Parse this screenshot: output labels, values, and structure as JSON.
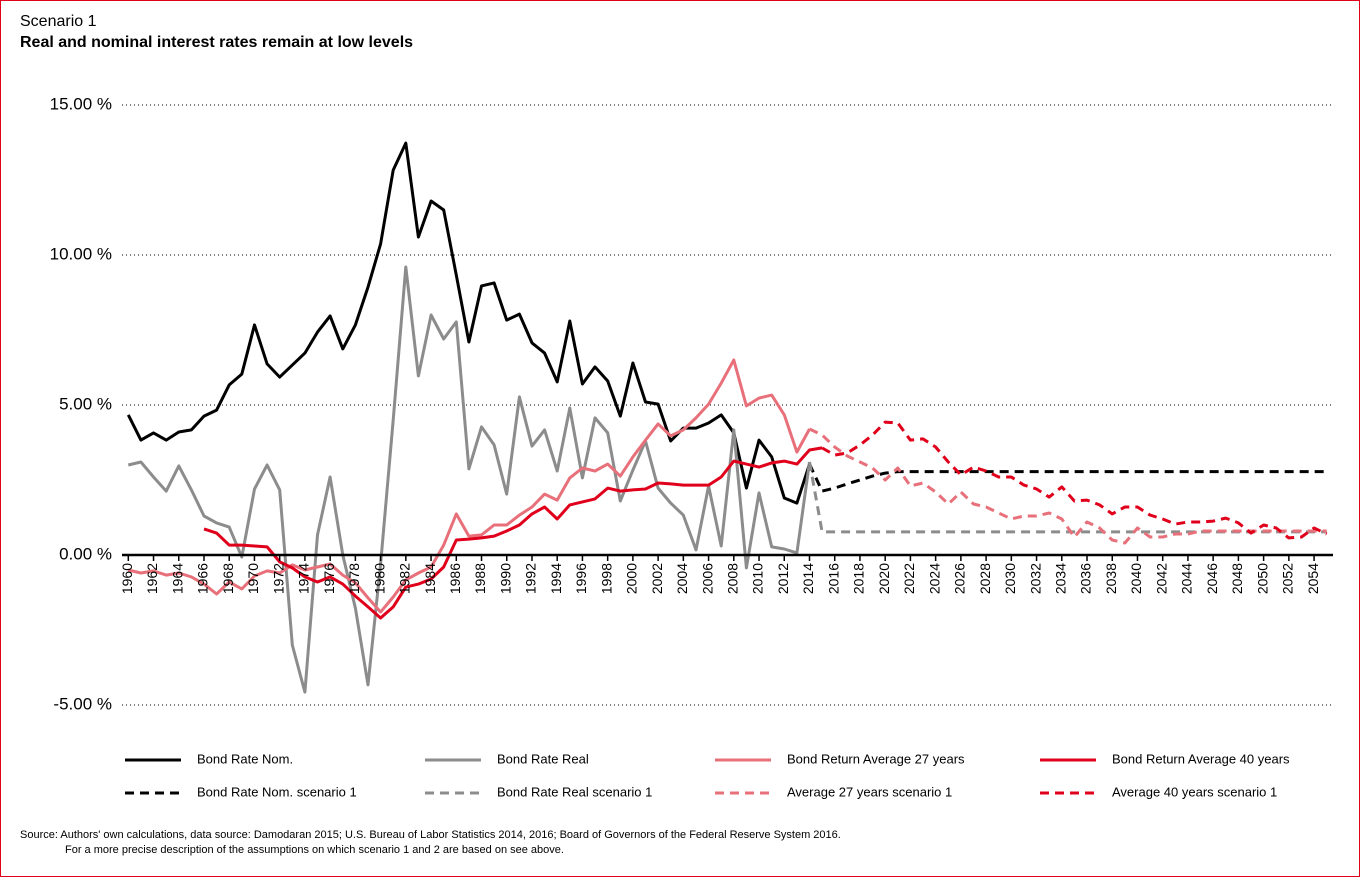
{
  "chart_data": {
    "type": "line",
    "kicker": "Scenario 1",
    "title": "Real and nominal interest rates remain at low levels",
    "source": [
      "Source: Authors' own calculations, data source: Damodaran 2015; U.S. Bureau of Labor Statistics 2014, 2016; Board of Governors of the Federal Reserve System 2016.",
      "For a more precise description of the assumptions on which scenario 1 and 2 are based on see above."
    ],
    "x": [
      1960,
      1961,
      1962,
      1963,
      1964,
      1965,
      1966,
      1967,
      1968,
      1969,
      1970,
      1971,
      1972,
      1973,
      1974,
      1975,
      1976,
      1977,
      1978,
      1979,
      1980,
      1981,
      1982,
      1983,
      1984,
      1985,
      1986,
      1987,
      1988,
      1989,
      1990,
      1991,
      1992,
      1993,
      1994,
      1995,
      1996,
      1997,
      1998,
      1999,
      2000,
      2001,
      2002,
      2003,
      2004,
      2005,
      2006,
      2007,
      2008,
      2009,
      2010,
      2011,
      2012,
      2013,
      2014,
      2015,
      2016,
      2017,
      2018,
      2019,
      2020,
      2021,
      2022,
      2023,
      2024,
      2025,
      2026,
      2027,
      2028,
      2029,
      2030,
      2031,
      2032,
      2033,
      2034,
      2035,
      2036,
      2037,
      2038,
      2039,
      2040,
      2041,
      2042,
      2043,
      2044,
      2045,
      2046,
      2047,
      2048,
      2049,
      2050,
      2051,
      2052,
      2053,
      2054,
      2055
    ],
    "xlim": [
      1959.5,
      2055.5
    ],
    "xticks": [
      1960,
      1962,
      1964,
      1966,
      1968,
      1970,
      1972,
      1974,
      1976,
      1978,
      1980,
      1982,
      1984,
      1986,
      1988,
      1990,
      1992,
      1994,
      1996,
      1998,
      2000,
      2002,
      2004,
      2006,
      2008,
      2010,
      2012,
      2014,
      2016,
      2018,
      2020,
      2022,
      2024,
      2026,
      2028,
      2030,
      2032,
      2034,
      2036,
      2038,
      2040,
      2042,
      2044,
      2046,
      2048,
      2050,
      2052,
      2054
    ],
    "ylim": [
      -5,
      15
    ],
    "yticks": [
      {
        "value": -5,
        "label": "-5.00 %"
      },
      {
        "value": 0,
        "label": "0.00 %"
      },
      {
        "value": 5,
        "label": "5.00 %"
      },
      {
        "value": 10,
        "label": "10.00 %"
      },
      {
        "value": 15,
        "label": "15.00 %"
      }
    ],
    "grid": true,
    "series": [
      {
        "name": "Bond Rate Nom.",
        "color": "#000000",
        "dashed": false,
        "values": [
          4.67,
          3.83,
          4.07,
          3.83,
          4.1,
          4.17,
          4.63,
          4.83,
          5.67,
          6.03,
          7.67,
          6.37,
          5.93,
          6.33,
          6.73,
          7.43,
          7.97,
          6.87,
          7.67,
          8.93,
          10.37,
          12.83,
          13.73,
          10.6,
          11.8,
          11.5,
          9.33,
          7.1,
          8.97,
          9.07,
          7.83,
          8.03,
          7.07,
          6.73,
          5.77,
          7.8,
          5.7,
          6.27,
          5.8,
          4.63,
          6.4,
          5.1,
          5.03,
          3.8,
          4.23,
          4.23,
          4.4,
          4.67,
          4.07,
          2.23,
          3.83,
          3.27,
          1.9,
          1.73,
          3.03,
          null,
          null,
          null,
          null,
          null,
          null,
          null,
          null,
          null,
          null,
          null,
          null,
          null,
          null,
          null,
          null,
          null,
          null,
          null,
          null,
          null,
          null,
          null,
          null,
          null,
          null,
          null,
          null,
          null,
          null,
          null,
          null,
          null,
          null,
          null,
          null,
          null,
          null,
          null,
          null,
          null
        ]
      },
      {
        "name": "Bond Rate Real",
        "color": "#8c8c8c",
        "dashed": false,
        "values": [
          3.0,
          3.1,
          2.6,
          2.13,
          2.97,
          2.17,
          1.3,
          1.07,
          0.93,
          -0.07,
          2.2,
          3.0,
          2.17,
          -3.0,
          -4.57,
          0.67,
          2.6,
          0,
          -1.77,
          -4.33,
          -0.3,
          4.5,
          9.6,
          5.97,
          8.0,
          7.2,
          7.77,
          2.87,
          4.27,
          3.67,
          2.03,
          5.27,
          3.63,
          4.17,
          2.8,
          4.9,
          2.57,
          4.57,
          4.07,
          1.8,
          2.83,
          3.8,
          2.23,
          1.73,
          1.33,
          0.17,
          2.3,
          0.3,
          4.17,
          -0.43,
          2.07,
          0.27,
          0.2,
          0.07,
          3.1,
          null,
          null,
          null,
          null,
          null,
          null,
          null,
          null,
          null,
          null,
          null,
          null,
          null,
          null,
          null,
          null,
          null,
          null,
          null,
          null,
          null,
          null,
          null,
          null,
          null,
          null,
          null,
          null,
          null,
          null,
          null,
          null,
          null,
          null,
          null,
          null,
          null,
          null,
          null,
          null,
          null
        ]
      },
      {
        "name": "Bond Return Average 27 years",
        "color": "#e8707a",
        "dashed": false,
        "values": [
          -0.5,
          -0.6,
          -0.53,
          -0.67,
          -0.6,
          -0.73,
          -0.97,
          -1.3,
          -0.9,
          -1.13,
          -0.7,
          -0.53,
          -0.6,
          -0.33,
          -0.5,
          -0.4,
          -0.3,
          -0.67,
          -0.93,
          -1.43,
          -1.9,
          -1.4,
          -0.83,
          -0.6,
          -0.4,
          0.33,
          1.37,
          0.63,
          0.67,
          1.0,
          1.0,
          1.33,
          1.6,
          2.03,
          1.83,
          2.57,
          2.9,
          2.8,
          3.03,
          2.63,
          3.27,
          3.83,
          4.37,
          3.97,
          4.17,
          4.57,
          5.03,
          5.73,
          6.5,
          4.97,
          5.23,
          5.33,
          4.67,
          3.43,
          4.2,
          null,
          null,
          null,
          null,
          null,
          null,
          null,
          null,
          null,
          null,
          null,
          null,
          null,
          null,
          null,
          null,
          null,
          null,
          null,
          null,
          null,
          null,
          null,
          null,
          null,
          null,
          null,
          null,
          null,
          null,
          null,
          null,
          null,
          null,
          null,
          null,
          null,
          null,
          null,
          null,
          null
        ]
      },
      {
        "name": "Bond Return Average 40 years",
        "color": "#e0001b",
        "dashed": false,
        "values": [
          null,
          null,
          null,
          null,
          null,
          null,
          0.87,
          0.73,
          0.33,
          0.33,
          0.3,
          0.27,
          -0.23,
          -0.43,
          -0.73,
          -0.9,
          -0.73,
          -0.97,
          -1.37,
          -1.73,
          -2.1,
          -1.73,
          -1.07,
          -0.97,
          -0.8,
          -0.4,
          0.5,
          0.53,
          0.57,
          0.63,
          0.8,
          1.0,
          1.37,
          1.6,
          1.2,
          1.67,
          1.77,
          1.87,
          2.23,
          2.13,
          2.17,
          2.2,
          2.4,
          2.37,
          2.33,
          2.33,
          2.33,
          2.6,
          3.13,
          3.03,
          2.93,
          3.07,
          3.13,
          3.03,
          3.5,
          3.57,
          null,
          null,
          null,
          null,
          null,
          null,
          null,
          null,
          null,
          null,
          null,
          null,
          null,
          null,
          null,
          null,
          null,
          null,
          null,
          null,
          null,
          null,
          null,
          null,
          null,
          null,
          null,
          null,
          null,
          null,
          null,
          null,
          null,
          null,
          null,
          null,
          null,
          null,
          null,
          null
        ]
      },
      {
        "name": "Bond Rate Nom. scenario 1",
        "color": "#000000",
        "dashed": true,
        "values": [
          null,
          null,
          null,
          null,
          null,
          null,
          null,
          null,
          null,
          null,
          null,
          null,
          null,
          null,
          null,
          null,
          null,
          null,
          null,
          null,
          null,
          null,
          null,
          null,
          null,
          null,
          null,
          null,
          null,
          null,
          null,
          null,
          null,
          null,
          null,
          null,
          null,
          null,
          null,
          null,
          null,
          null,
          null,
          null,
          null,
          null,
          null,
          null,
          null,
          null,
          null,
          null,
          null,
          null,
          3.03,
          2.13,
          2.23,
          2.37,
          2.5,
          2.63,
          2.73,
          2.78,
          2.78,
          2.78,
          2.78,
          2.78,
          2.78,
          2.78,
          2.78,
          2.78,
          2.78,
          2.78,
          2.78,
          2.78,
          2.78,
          2.78,
          2.78,
          2.78,
          2.78,
          2.78,
          2.78,
          2.78,
          2.78,
          2.78,
          2.78,
          2.78,
          2.78,
          2.78,
          2.78,
          2.78,
          2.78,
          2.78,
          2.78,
          2.78,
          2.78,
          2.78
        ]
      },
      {
        "name": "Bond Rate Real scenario 1",
        "color": "#8c8c8c",
        "dashed": true,
        "values": [
          null,
          null,
          null,
          null,
          null,
          null,
          null,
          null,
          null,
          null,
          null,
          null,
          null,
          null,
          null,
          null,
          null,
          null,
          null,
          null,
          null,
          null,
          null,
          null,
          null,
          null,
          null,
          null,
          null,
          null,
          null,
          null,
          null,
          null,
          null,
          null,
          null,
          null,
          null,
          null,
          null,
          null,
          null,
          null,
          null,
          null,
          null,
          null,
          null,
          null,
          null,
          null,
          null,
          null,
          3.1,
          0.77,
          0.77,
          0.77,
          0.77,
          0.77,
          0.77,
          0.77,
          0.77,
          0.77,
          0.77,
          0.77,
          0.77,
          0.77,
          0.77,
          0.77,
          0.77,
          0.77,
          0.77,
          0.77,
          0.77,
          0.77,
          0.77,
          0.77,
          0.77,
          0.77,
          0.77,
          0.77,
          0.77,
          0.77,
          0.77,
          0.77,
          0.77,
          0.77,
          0.77,
          0.77,
          0.77,
          0.77,
          0.77,
          0.77,
          0.77,
          0.77
        ]
      },
      {
        "name": "Average 27 years scenario 1",
        "color": "#e8707a",
        "dashed": true,
        "values": [
          null,
          null,
          null,
          null,
          null,
          null,
          null,
          null,
          null,
          null,
          null,
          null,
          null,
          null,
          null,
          null,
          null,
          null,
          null,
          null,
          null,
          null,
          null,
          null,
          null,
          null,
          null,
          null,
          null,
          null,
          null,
          null,
          null,
          null,
          null,
          null,
          null,
          null,
          null,
          null,
          null,
          null,
          null,
          null,
          null,
          null,
          null,
          null,
          null,
          null,
          null,
          null,
          null,
          null,
          4.2,
          4.0,
          3.6,
          3.3,
          3.1,
          2.9,
          2.5,
          2.9,
          2.3,
          2.4,
          2.1,
          1.7,
          2.1,
          1.7,
          1.6,
          1.4,
          1.2,
          1.3,
          1.3,
          1.4,
          1.2,
          0.6,
          1.1,
          0.9,
          0.5,
          0.4,
          0.9,
          0.6,
          0.6,
          0.7,
          0.7,
          0.8,
          0.8,
          0.8,
          0.8,
          0.8,
          0.8,
          0.8,
          0.8,
          0.8,
          0.8,
          0.8
        ]
      },
      {
        "name": "Average 40 years scenario 1",
        "color": "#e0001b",
        "dashed": true,
        "values": [
          null,
          null,
          null,
          null,
          null,
          null,
          null,
          null,
          null,
          null,
          null,
          null,
          null,
          null,
          null,
          null,
          null,
          null,
          null,
          null,
          null,
          null,
          null,
          null,
          null,
          null,
          null,
          null,
          null,
          null,
          null,
          null,
          null,
          null,
          null,
          null,
          null,
          null,
          null,
          null,
          null,
          null,
          null,
          null,
          null,
          null,
          null,
          null,
          null,
          null,
          null,
          null,
          null,
          null,
          null,
          3.57,
          3.33,
          3.4,
          3.67,
          4.0,
          4.43,
          4.4,
          3.83,
          3.87,
          3.6,
          3.1,
          2.67,
          2.93,
          2.8,
          2.6,
          2.6,
          2.33,
          2.2,
          1.93,
          2.27,
          1.8,
          1.83,
          1.67,
          1.37,
          1.6,
          1.6,
          1.33,
          1.2,
          1.03,
          1.1,
          1.1,
          1.13,
          1.23,
          1.07,
          0.73,
          1.0,
          0.9,
          0.57,
          0.6,
          0.9,
          0.7
        ]
      }
    ]
  }
}
